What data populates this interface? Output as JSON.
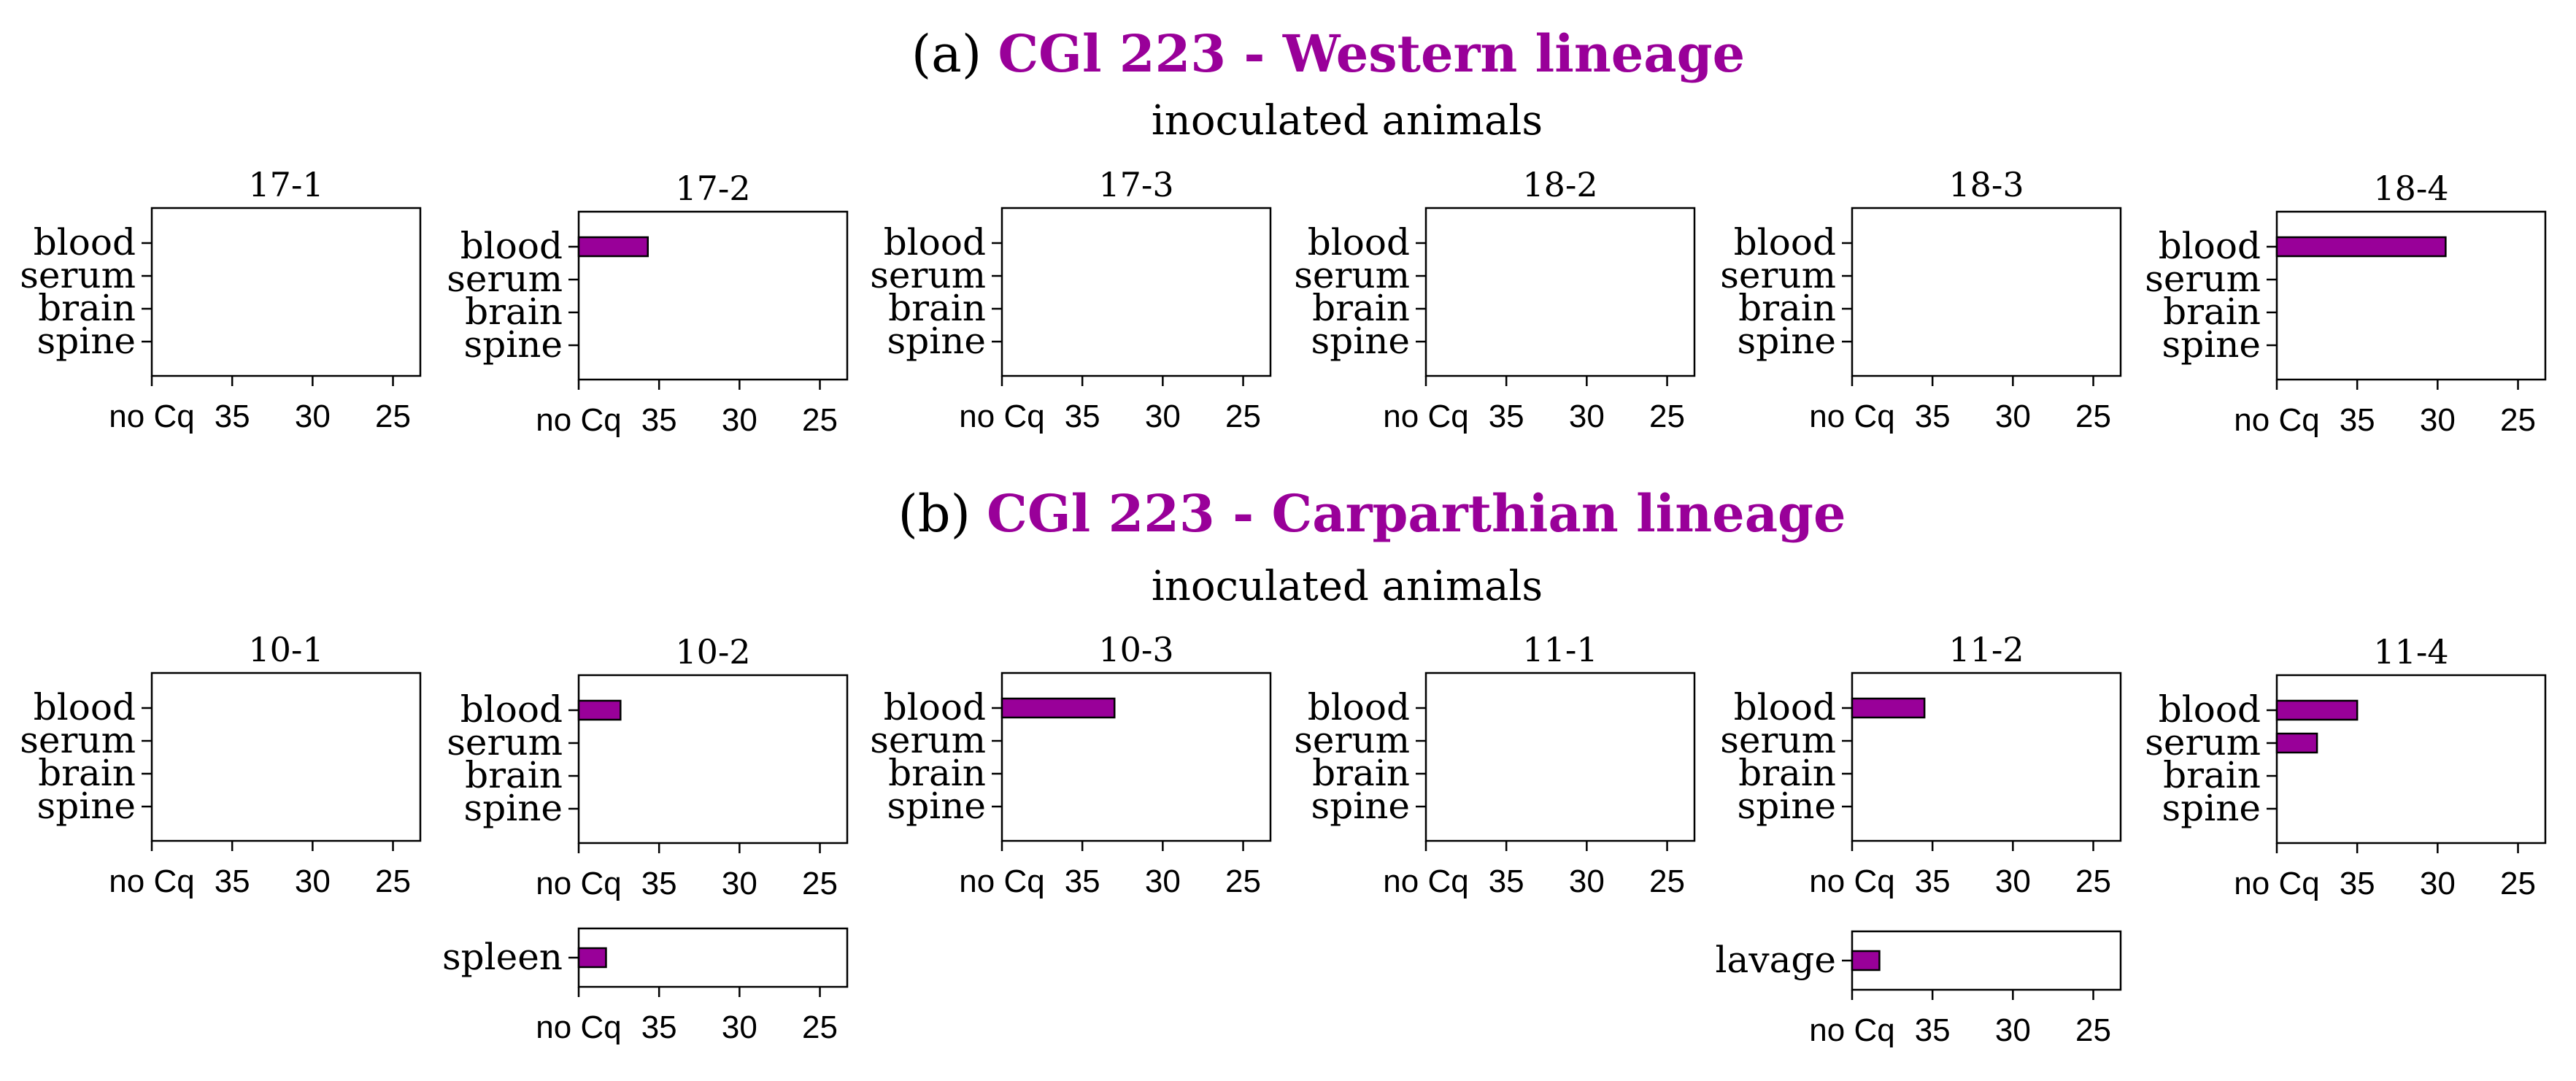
{
  "accent_color": "#990099",
  "sections": [
    {
      "prefix": "(a)",
      "title": "CGl 223 - Western lineage",
      "subtitle": "inoculated animals",
      "charts": [
        {
          "label": "17-1",
          "bars": [
            0,
            0,
            0,
            0
          ],
          "extra": null
        },
        {
          "label": "17-2",
          "bars": [
            35.7,
            0,
            0,
            0
          ],
          "extra": null
        },
        {
          "label": "17-3",
          "bars": [
            0,
            0,
            0,
            0
          ],
          "extra": null
        },
        {
          "label": "18-2",
          "bars": [
            0,
            0,
            0,
            0
          ],
          "extra": null
        },
        {
          "label": "18-3",
          "bars": [
            0,
            0,
            0,
            0
          ],
          "extra": null
        },
        {
          "label": "18-4",
          "bars": [
            29.5,
            0,
            0,
            0
          ],
          "extra": null
        }
      ]
    },
    {
      "prefix": "(b)",
      "title": "CGl 223 - Carparthian lineage",
      "subtitle": "inoculated animals",
      "charts": [
        {
          "label": "10-1",
          "bars": [
            0,
            0,
            0,
            0
          ],
          "extra": null
        },
        {
          "label": "10-2",
          "bars": [
            37.4,
            0,
            0,
            0
          ],
          "extra": {
            "category": "spleen",
            "value": 38.3
          }
        },
        {
          "label": "10-3",
          "bars": [
            33.0,
            0,
            0,
            0
          ],
          "extra": null
        },
        {
          "label": "11-1",
          "bars": [
            0,
            0,
            0,
            0
          ],
          "extra": null
        },
        {
          "label": "11-2",
          "bars": [
            35.5,
            0,
            0,
            0
          ],
          "extra": {
            "category": "lavage",
            "value": 38.3
          }
        },
        {
          "label": "11-4",
          "bars": [
            35.0,
            37.5,
            0,
            0
          ],
          "extra": null
        }
      ]
    }
  ],
  "chart_data": {
    "type": "bar",
    "orientation": "horizontal",
    "categories": [
      "blood",
      "serum",
      "brain",
      "spine"
    ],
    "tick_labels": [
      "no Cq",
      "35",
      "30",
      "25"
    ],
    "tick_values": [
      40,
      35,
      30,
      25
    ],
    "xlim": [
      40,
      23.3
    ],
    "note": "Bars extend from the no-Cq baseline (40) to the Cq value; 0 = no bar (no Cq)."
  }
}
